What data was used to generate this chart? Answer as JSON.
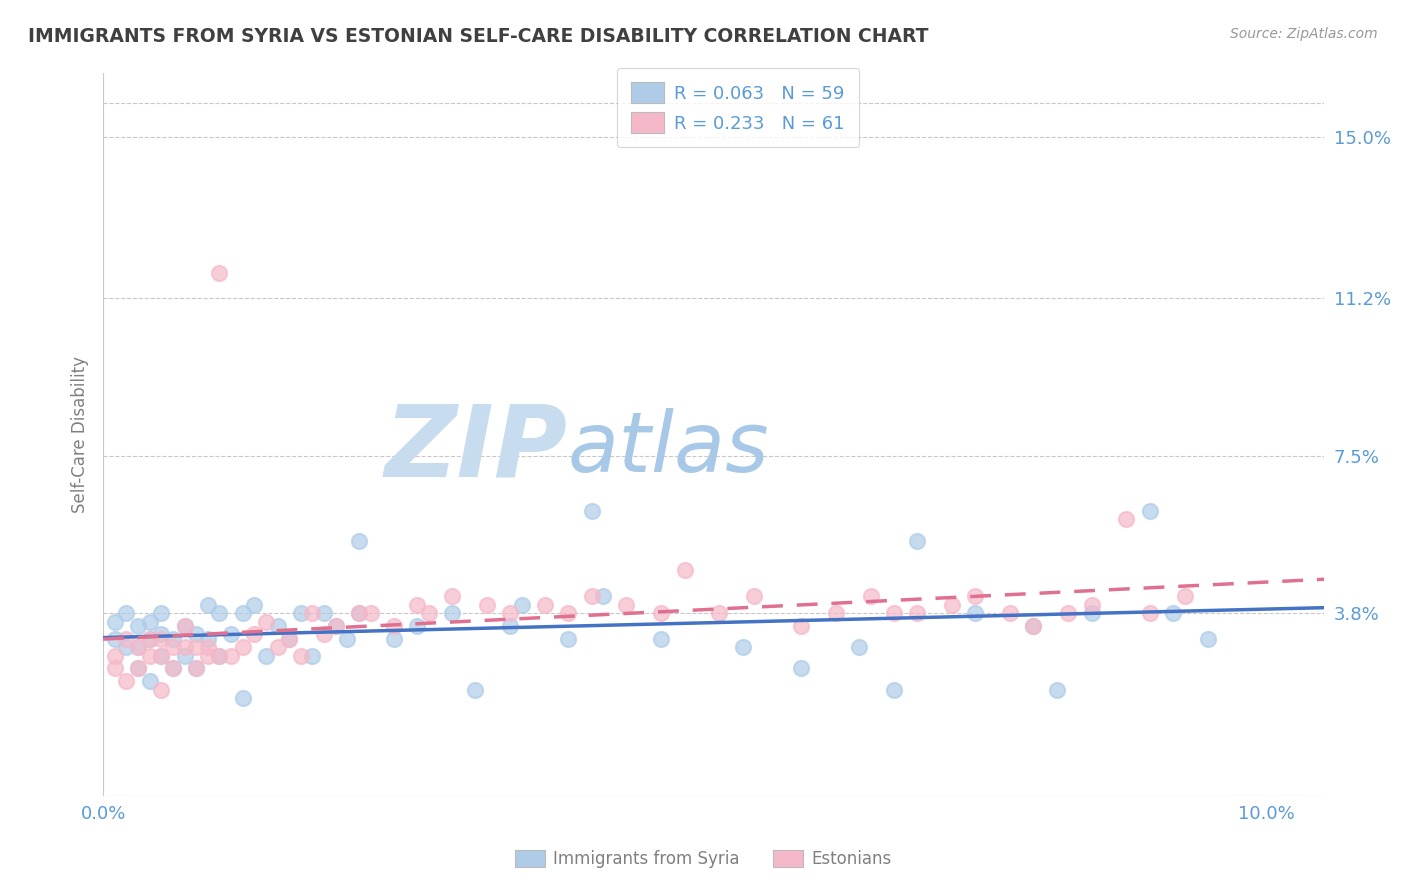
{
  "title": "IMMIGRANTS FROM SYRIA VS ESTONIAN SELF-CARE DISABILITY CORRELATION CHART",
  "source_text": "Source: ZipAtlas.com",
  "ylabel": "Self-Care Disability",
  "xlim": [
    0.0,
    0.105
  ],
  "ylim": [
    -0.005,
    0.165
  ],
  "yticks": [
    0.038,
    0.075,
    0.112,
    0.15
  ],
  "ytick_labels": [
    "3.8%",
    "7.5%",
    "11.2%",
    "15.0%"
  ],
  "xticks": [
    0.0,
    0.1
  ],
  "xtick_labels": [
    "0.0%",
    "10.0%"
  ],
  "legend_labels": [
    "Immigrants from Syria",
    "Estonians"
  ],
  "legend_R": [
    "R = 0.063",
    "R = 0.233"
  ],
  "legend_N": [
    "N = 59",
    "N = 61"
  ],
  "color_syria": "#AECCE8",
  "color_estonia": "#F5B8C8",
  "line_color_syria": "#4472C4",
  "line_color_estonia": "#E07090",
  "title_color": "#404040",
  "axis_label_color": "#808080",
  "tick_color": "#5B9BD5",
  "grid_color": "#C8C8C8",
  "watermark_zip": "#C8DCF0",
  "watermark_atlas": "#A8C8E8",
  "syria_x": [
    0.001,
    0.001,
    0.002,
    0.002,
    0.003,
    0.003,
    0.003,
    0.004,
    0.004,
    0.004,
    0.005,
    0.005,
    0.005,
    0.006,
    0.006,
    0.007,
    0.007,
    0.008,
    0.008,
    0.009,
    0.009,
    0.01,
    0.01,
    0.011,
    0.012,
    0.012,
    0.013,
    0.014,
    0.015,
    0.016,
    0.017,
    0.018,
    0.019,
    0.02,
    0.021,
    0.022,
    0.022,
    0.025,
    0.027,
    0.03,
    0.032,
    0.035,
    0.036,
    0.04,
    0.042,
    0.043,
    0.048,
    0.055,
    0.06,
    0.065,
    0.068,
    0.07,
    0.075,
    0.08,
    0.082,
    0.085,
    0.09,
    0.092,
    0.095
  ],
  "syria_y": [
    0.032,
    0.036,
    0.03,
    0.038,
    0.025,
    0.03,
    0.035,
    0.022,
    0.032,
    0.036,
    0.028,
    0.033,
    0.038,
    0.025,
    0.032,
    0.028,
    0.035,
    0.025,
    0.033,
    0.032,
    0.04,
    0.028,
    0.038,
    0.033,
    0.018,
    0.038,
    0.04,
    0.028,
    0.035,
    0.032,
    0.038,
    0.028,
    0.038,
    0.035,
    0.032,
    0.038,
    0.055,
    0.032,
    0.035,
    0.038,
    0.02,
    0.035,
    0.04,
    0.032,
    0.062,
    0.042,
    0.032,
    0.03,
    0.025,
    0.03,
    0.02,
    0.055,
    0.038,
    0.035,
    0.02,
    0.038,
    0.062,
    0.038,
    0.032
  ],
  "estonia_x": [
    0.001,
    0.001,
    0.002,
    0.002,
    0.003,
    0.003,
    0.004,
    0.004,
    0.005,
    0.005,
    0.005,
    0.006,
    0.006,
    0.007,
    0.007,
    0.008,
    0.008,
    0.009,
    0.009,
    0.01,
    0.01,
    0.011,
    0.012,
    0.013,
    0.014,
    0.015,
    0.016,
    0.017,
    0.018,
    0.019,
    0.02,
    0.022,
    0.023,
    0.025,
    0.027,
    0.028,
    0.03,
    0.033,
    0.035,
    0.038,
    0.04,
    0.042,
    0.045,
    0.048,
    0.05,
    0.053,
    0.056,
    0.06,
    0.063,
    0.066,
    0.068,
    0.07,
    0.073,
    0.075,
    0.078,
    0.08,
    0.083,
    0.085,
    0.088,
    0.09,
    0.093
  ],
  "estonia_y": [
    0.028,
    0.025,
    0.032,
    0.022,
    0.03,
    0.025,
    0.028,
    0.032,
    0.028,
    0.032,
    0.02,
    0.03,
    0.025,
    0.035,
    0.03,
    0.03,
    0.025,
    0.028,
    0.03,
    0.028,
    0.118,
    0.028,
    0.03,
    0.033,
    0.036,
    0.03,
    0.032,
    0.028,
    0.038,
    0.033,
    0.035,
    0.038,
    0.038,
    0.035,
    0.04,
    0.038,
    0.042,
    0.04,
    0.038,
    0.04,
    0.038,
    0.042,
    0.04,
    0.038,
    0.048,
    0.038,
    0.042,
    0.035,
    0.038,
    0.042,
    0.038,
    0.038,
    0.04,
    0.042,
    0.038,
    0.035,
    0.038,
    0.04,
    0.06,
    0.038,
    0.042
  ]
}
